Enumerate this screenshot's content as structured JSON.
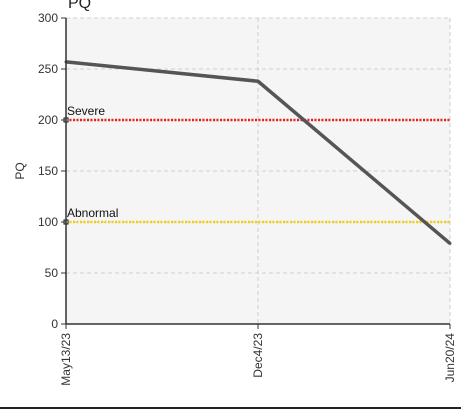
{
  "chart_data": {
    "type": "line",
    "title": "PQ",
    "ylabel": "PQ",
    "xlabel": "",
    "ylim": [
      0,
      300
    ],
    "yticks": [
      0,
      50,
      100,
      150,
      200,
      250,
      300
    ],
    "categories": [
      "May13/23",
      "Dec4/23",
      "Jun20/24"
    ],
    "series": [
      {
        "name": "",
        "values": [
          257,
          238,
          79
        ],
        "color": "#555555"
      }
    ],
    "reference_lines": [
      {
        "label": "Severe",
        "value": 200,
        "color": "#e8231f"
      },
      {
        "label": "Abnormal",
        "value": 100,
        "color": "#f2cd16"
      }
    ],
    "grid": true,
    "background_color": "#f5f5f5"
  }
}
